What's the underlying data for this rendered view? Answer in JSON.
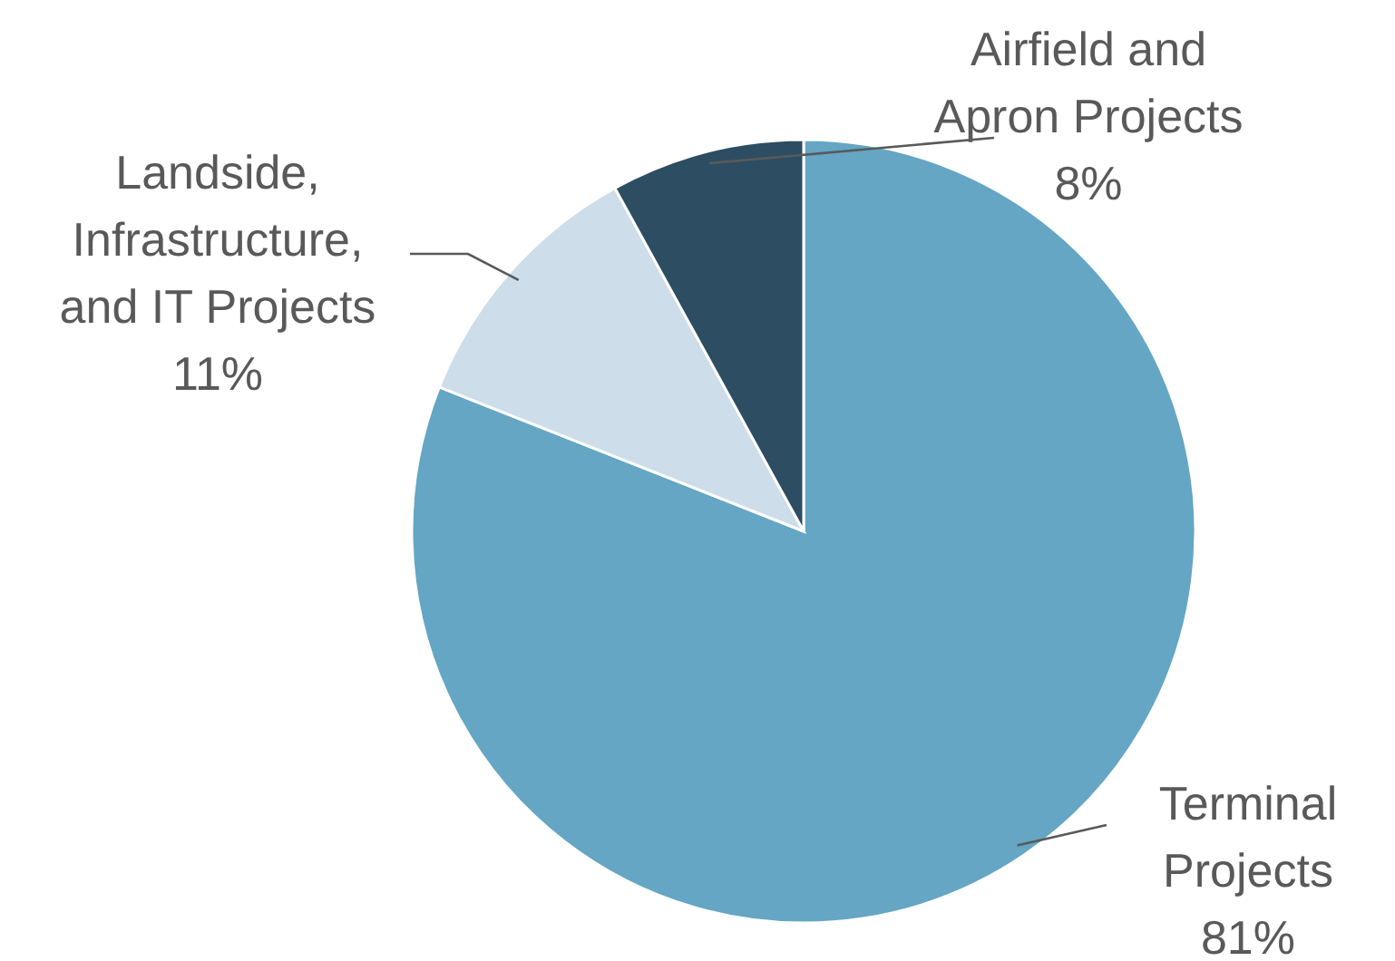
{
  "chart_data": {
    "type": "pie",
    "categories": [
      "Terminal\nProjects",
      "Landside,\nInfrastructure,\nand IT Projects",
      "Airfield and\nApron Projects"
    ],
    "values": [
      81,
      11,
      8
    ],
    "colors": [
      "#64a6c4",
      "#cddde9",
      "#2c4d62"
    ],
    "value_labels": [
      "81%",
      "11%",
      "8%"
    ]
  }
}
